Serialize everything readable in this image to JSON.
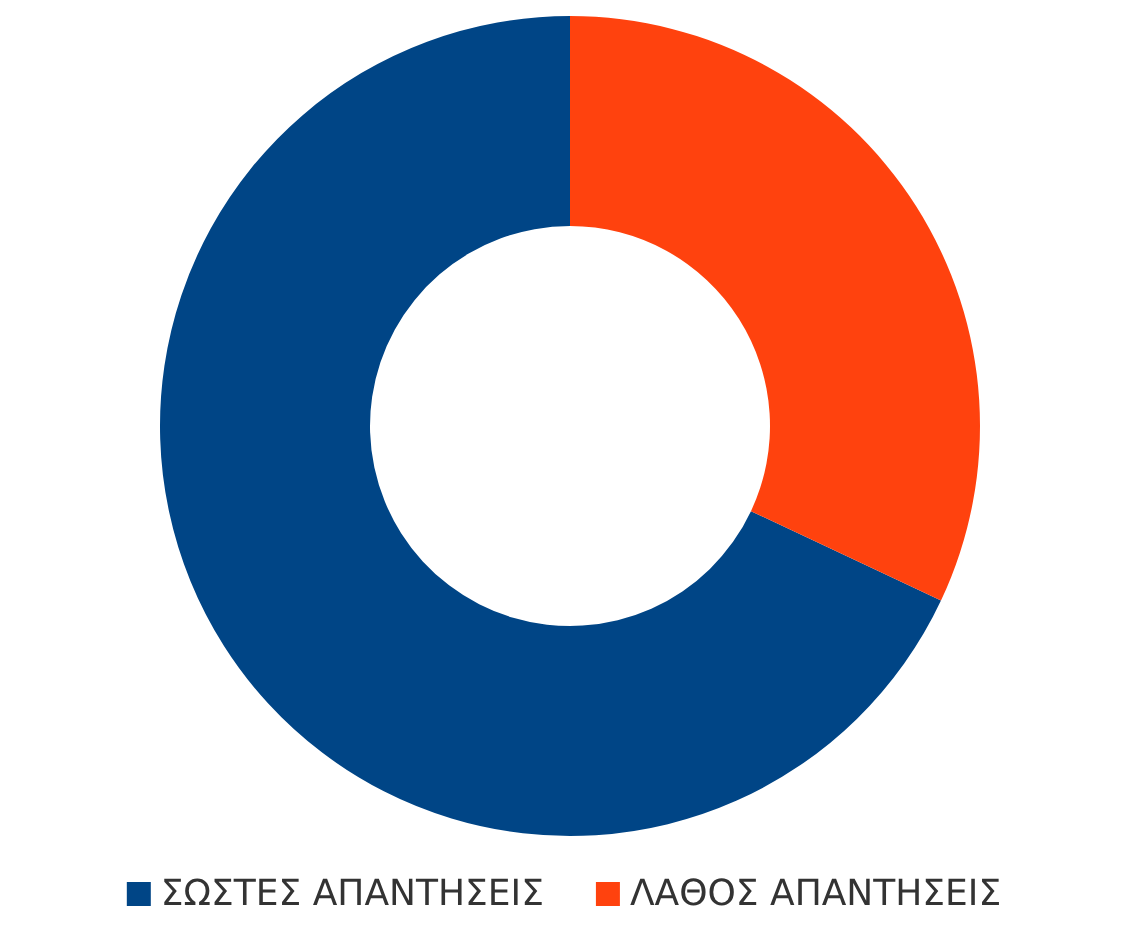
{
  "chart_data": {
    "type": "donut",
    "categories": [
      "ΣΩΣΤΕΣ ΑΠΑΝΤΗΣΕΙΣ",
      "ΛΑΘΟΣ ΑΠΑΝΤΗΣΕΙΣ"
    ],
    "values": [
      68,
      32
    ],
    "colors": [
      "#004586",
      "#ff420e"
    ],
    "legend": "bottom"
  }
}
